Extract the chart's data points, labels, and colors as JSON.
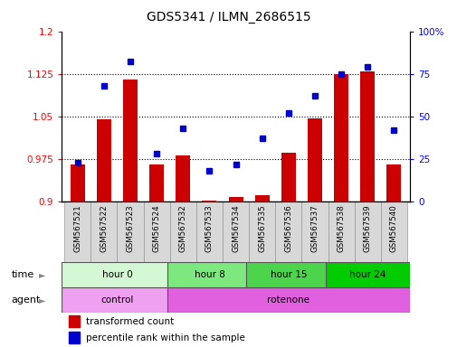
{
  "title": "GDS5341 / ILMN_2686515",
  "samples": [
    "GSM567521",
    "GSM567522",
    "GSM567523",
    "GSM567524",
    "GSM567532",
    "GSM567533",
    "GSM567534",
    "GSM567535",
    "GSM567536",
    "GSM567537",
    "GSM567538",
    "GSM567539",
    "GSM567540"
  ],
  "red_values": [
    0.965,
    1.045,
    1.115,
    0.965,
    0.982,
    0.902,
    0.908,
    0.912,
    0.986,
    1.046,
    1.125,
    1.13,
    0.965
  ],
  "blue_values": [
    23,
    68,
    82,
    28,
    43,
    18,
    22,
    37,
    52,
    62,
    75,
    79,
    42
  ],
  "ylim_left": [
    0.9,
    1.2
  ],
  "ylim_right": [
    0,
    100
  ],
  "yticks_left": [
    0.9,
    0.975,
    1.05,
    1.125,
    1.2
  ],
  "yticks_right": [
    0,
    25,
    50,
    75,
    100
  ],
  "ytick_labels_left": [
    "0.9",
    "0.975",
    "1.05",
    "1.125",
    "1.2"
  ],
  "ytick_labels_right": [
    "0",
    "25",
    "50",
    "75",
    "100%"
  ],
  "hlines": [
    0.975,
    1.05,
    1.125
  ],
  "time_groups": [
    {
      "label": "hour 0",
      "start": 0,
      "end": 4,
      "color": "#d4f7d4"
    },
    {
      "label": "hour 8",
      "start": 4,
      "end": 7,
      "color": "#7de87d"
    },
    {
      "label": "hour 15",
      "start": 7,
      "end": 10,
      "color": "#4dd44d"
    },
    {
      "label": "hour 24",
      "start": 10,
      "end": 13,
      "color": "#00cc00"
    }
  ],
  "agent_groups": [
    {
      "label": "control",
      "start": 0,
      "end": 4,
      "color": "#f0a0f0"
    },
    {
      "label": "rotenone",
      "start": 4,
      "end": 13,
      "color": "#e060e0"
    }
  ],
  "bar_color": "#cc0000",
  "dot_color": "#0000cc",
  "bar_width": 0.55,
  "label_red": "transformed count",
  "label_blue": "percentile rank within the sample",
  "sample_bg": "#d8d8d8"
}
